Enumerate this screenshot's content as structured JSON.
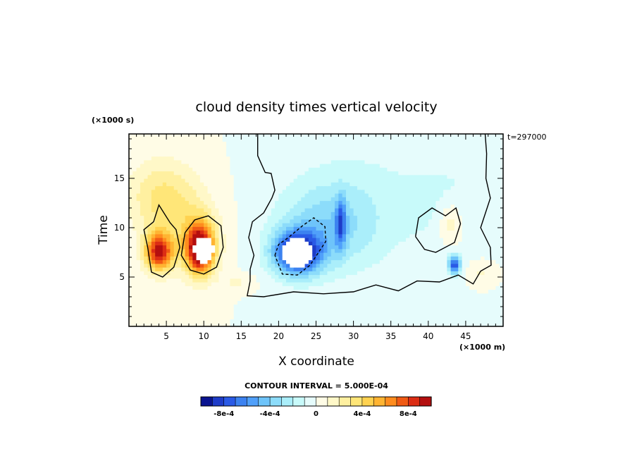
{
  "chart_data": {
    "type": "heatmap",
    "title": "cloud density times vertical velocity",
    "xlabel": "X coordinate",
    "ylabel": "Time",
    "x_unit": "(×1000 m)",
    "y_unit": "(×1000 s)",
    "time_label": "t=297000",
    "xlim": [
      0,
      50
    ],
    "ylim": [
      0,
      19.5
    ],
    "x_ticks": [
      5,
      10,
      15,
      20,
      25,
      30,
      35,
      40,
      45
    ],
    "y_ticks": [
      5,
      10,
      15
    ],
    "x_tick_labels": [
      "5",
      "10",
      "15",
      "20",
      "25",
      "30",
      "35",
      "40",
      "45"
    ],
    "y_tick_labels": [
      "5",
      "10",
      "15"
    ],
    "contour_interval_text": "CONTOUR INTERVAL = 5.000E-04",
    "colorbar": {
      "levels": [
        -0.001,
        -0.0009,
        -0.0008,
        -0.0007,
        -0.0006,
        -0.0005,
        -0.0004,
        -0.0003,
        -0.0002,
        -0.0001,
        0,
        0.0001,
        0.0002,
        0.0003,
        0.0004,
        0.0005,
        0.0006,
        0.0007,
        0.0008,
        0.0009,
        0.001
      ],
      "colors": [
        "#0a1490",
        "#1e3cc8",
        "#2a5ae6",
        "#3c82f0",
        "#50a0fa",
        "#6ec4fa",
        "#8cdcfa",
        "#aaeefa",
        "#c8fafa",
        "#e6fcfc",
        "#fffce6",
        "#fff8c8",
        "#fff0a0",
        "#ffe678",
        "#ffd250",
        "#ffb432",
        "#ff8c1e",
        "#f05a14",
        "#dc2d14",
        "#b40f0f"
      ],
      "tick_values": [
        -0.0008,
        -0.0004,
        0,
        0.0004,
        0.0008
      ],
      "tick_labels": [
        "-8e-4",
        "-4e-4",
        "0",
        "4e-4",
        "8e-4"
      ]
    },
    "features": [
      {
        "kind": "positive-broad",
        "x": 4.5,
        "y": 13,
        "sx": 4.5,
        "sy": 3.8,
        "value": 0.00034
      },
      {
        "kind": "positive-broad",
        "x": 9.0,
        "y": 9,
        "sx": 3.2,
        "sy": 3.8,
        "value": 0.0003
      },
      {
        "kind": "positive-core",
        "x": 4.0,
        "y": 7.6,
        "sx": 1.9,
        "sy": 2.0,
        "value": 0.0009
      },
      {
        "kind": "positive-core",
        "x": 9.5,
        "y": 7.8,
        "sx": 1.8,
        "sy": 2.4,
        "value": 0.001
      },
      {
        "kind": "positive-weak",
        "x": 14.5,
        "y": 4.5,
        "sx": 2.2,
        "sy": 0.8,
        "value": 0.00012
      },
      {
        "kind": "positive-weak",
        "x": 43.0,
        "y": 10.5,
        "sx": 1.6,
        "sy": 2.2,
        "value": 0.00022
      },
      {
        "kind": "positive-weak",
        "x": 47.0,
        "y": 5.5,
        "sx": 1.6,
        "sy": 1.1,
        "value": 0.00012
      },
      {
        "kind": "negative-broad",
        "x": 30,
        "y": 12,
        "sx": 9,
        "sy": 6.5,
        "value": -0.00016
      },
      {
        "kind": "negative-broad",
        "x": 43,
        "y": 13,
        "sx": 6,
        "sy": 5.5,
        "value": -0.0001
      },
      {
        "kind": "negative-mid",
        "x": 26,
        "y": 10,
        "sx": 6,
        "sy": 4,
        "value": -0.00026
      },
      {
        "kind": "negative-core",
        "x": 22.5,
        "y": 7.5,
        "sx": 3.2,
        "sy": 2.2,
        "value": -0.00095
      },
      {
        "kind": "negative-streak",
        "x": 28.3,
        "y": 10.5,
        "sx": 0.7,
        "sy": 2.5,
        "value": -0.0005
      },
      {
        "kind": "negative-core",
        "x": 43.5,
        "y": 6.3,
        "sx": 0.8,
        "sy": 0.9,
        "value": -0.0008
      }
    ],
    "holes": [
      {
        "x": 22.5,
        "y": 7.5,
        "sx": 2.2,
        "sy": 1.4
      },
      {
        "x": 10.0,
        "y": 7.8,
        "sx": 1.3,
        "sy": 1.3
      }
    ],
    "contour_lines": [
      {
        "style": "solid",
        "points": [
          [
            38.3,
            9.1
          ],
          [
            38.7,
            11.0
          ],
          [
            40.5,
            12.0
          ],
          [
            42.3,
            11.2
          ],
          [
            43.7,
            12.0
          ],
          [
            44.3,
            10.4
          ],
          [
            43.5,
            8.5
          ],
          [
            41.0,
            7.5
          ],
          [
            39.5,
            7.8
          ],
          [
            38.3,
            9.1
          ]
        ]
      },
      {
        "style": "solid",
        "points": [
          [
            17.2,
            19.5
          ],
          [
            17.2,
            17.3
          ],
          [
            18.2,
            15.6
          ],
          [
            19.0,
            15.5
          ],
          [
            19.5,
            13.8
          ],
          [
            19.1,
            13.0
          ],
          [
            18.0,
            11.5
          ],
          [
            16.5,
            10.6
          ],
          [
            16.0,
            9.0
          ],
          [
            16.7,
            7.2
          ],
          [
            16.2,
            5.8
          ],
          [
            16.2,
            4.6
          ],
          [
            15.8,
            3.1
          ],
          [
            18.0,
            3.0
          ],
          [
            22.0,
            3.5
          ],
          [
            26.0,
            3.3
          ],
          [
            30.0,
            3.5
          ],
          [
            33.0,
            4.2
          ],
          [
            36.0,
            3.6
          ],
          [
            38.5,
            4.6
          ],
          [
            41.5,
            4.5
          ],
          [
            44.0,
            5.2
          ],
          [
            46.0,
            4.3
          ],
          [
            47.0,
            5.6
          ],
          [
            48.4,
            6.2
          ],
          [
            48.3,
            8.0
          ],
          [
            47.0,
            10.0
          ],
          [
            48.3,
            13.0
          ],
          [
            47.7,
            15.0
          ],
          [
            47.8,
            17.5
          ],
          [
            47.6,
            19.5
          ]
        ]
      },
      {
        "style": "solid",
        "points": [
          [
            2.5,
            8.0
          ],
          [
            2.0,
            9.8
          ],
          [
            3.3,
            10.6
          ],
          [
            4.0,
            12.3
          ],
          [
            5.5,
            10.5
          ],
          [
            6.3,
            9.8
          ],
          [
            6.8,
            8.0
          ],
          [
            6.0,
            6.0
          ],
          [
            4.5,
            5.0
          ],
          [
            3.0,
            5.5
          ],
          [
            2.5,
            8.0
          ]
        ]
      },
      {
        "style": "solid",
        "points": [
          [
            7.5,
            9.5
          ],
          [
            8.8,
            10.8
          ],
          [
            10.6,
            11.2
          ],
          [
            12.3,
            10.2
          ],
          [
            12.6,
            8.0
          ],
          [
            11.7,
            6.0
          ],
          [
            10.0,
            5.3
          ],
          [
            8.2,
            5.7
          ],
          [
            7.0,
            7.2
          ],
          [
            7.5,
            9.5
          ]
        ]
      },
      {
        "style": "dashed",
        "points": [
          [
            19.5,
            7.2
          ],
          [
            20.0,
            8.3
          ],
          [
            21.3,
            9.0
          ],
          [
            23.2,
            10.2
          ],
          [
            24.7,
            11.0
          ],
          [
            26.2,
            10.1
          ],
          [
            26.3,
            8.6
          ],
          [
            24.2,
            6.2
          ],
          [
            22.5,
            5.2
          ],
          [
            20.5,
            5.3
          ],
          [
            19.5,
            7.2
          ]
        ]
      }
    ]
  }
}
